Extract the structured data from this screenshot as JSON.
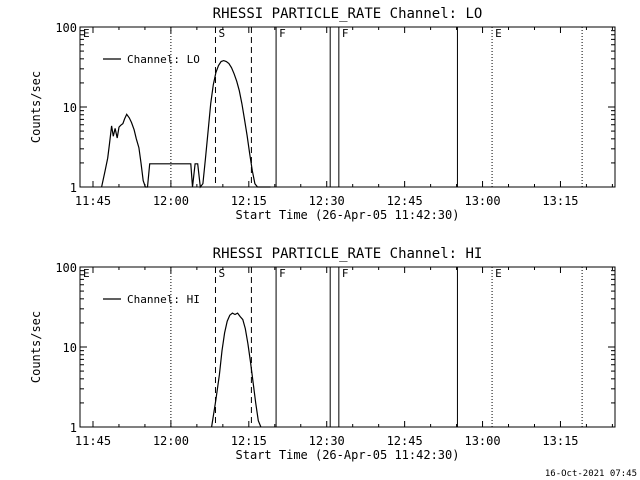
{
  "footer": {
    "date_stamp": "16-Oct-2021 07:45"
  },
  "chart_data": [
    {
      "type": "line",
      "title": "RHESSI PARTICLE_RATE Channel: LO",
      "xlabel": "Start Time (26-Apr-05 11:42:30)",
      "ylabel": "Counts/sec",
      "yscale": "log",
      "xlim": [
        "11:42:30",
        "13:25:30"
      ],
      "ylim": [
        1,
        100
      ],
      "x_ticks": [
        "11:45",
        "12:00",
        "12:15",
        "12:30",
        "12:45",
        "13:00",
        "13:15"
      ],
      "y_ticks": [
        "1",
        "10",
        "100"
      ],
      "legend": {
        "position": "top-left"
      },
      "series": [
        {
          "name": "Channel: LO",
          "x": [
            "11:46:40",
            "11:47:20",
            "11:47:50",
            "11:48:10",
            "11:48:35",
            "11:48:55",
            "11:49:15",
            "11:49:40",
            "11:50:00",
            "11:50:20",
            "11:50:45",
            "11:51:05",
            "11:51:30",
            "11:52:00",
            "11:52:25",
            "11:52:55",
            "11:53:20",
            "11:53:50",
            "11:54:15",
            "11:54:40",
            "11:55:05",
            "11:55:30",
            "11:55:55",
            "11:56:20",
            "11:56:45",
            "11:57:10",
            "11:57:35",
            "11:58:00",
            "11:58:25",
            "11:58:50",
            "12:03:50",
            "12:04:10",
            "12:04:40",
            "12:05:10",
            "12:05:40",
            "12:06:10",
            "12:06:40",
            "12:07:10",
            "12:07:40",
            "12:08:10",
            "12:08:40",
            "12:09:10",
            "12:09:40",
            "12:10:10",
            "12:10:40",
            "12:11:10",
            "12:11:40",
            "12:12:10",
            "12:12:40",
            "12:13:10",
            "12:13:40",
            "12:14:10",
            "12:14:40",
            "12:15:10",
            "12:15:40",
            "12:16:10",
            "12:16:40",
            "12:17:10",
            "12:17:40",
            "12:18:10",
            "12:18:40",
            "12:19:10"
          ],
          "y": [
            1.0,
            1.6,
            2.3,
            3.4,
            5.8,
            4.3,
            5.4,
            4.1,
            5.6,
            5.9,
            6.2,
            7.1,
            8.1,
            7.3,
            6.4,
            5.2,
            4.0,
            3.1,
            2.0,
            1.2,
            1.0,
            1.0,
            1.95,
            1.95,
            1.95,
            1.95,
            1.95,
            1.95,
            1.95,
            1.95,
            1.95,
            1.0,
            1.95,
            1.95,
            1.0,
            1.1,
            2.3,
            5.0,
            11,
            19,
            27,
            33,
            37,
            38,
            37,
            35,
            31,
            26,
            21,
            16,
            11,
            7,
            4.4,
            2.6,
            1.6,
            1.1,
            1.0,
            1.0,
            1.0,
            1.0,
            1.0,
            1.0
          ]
        }
      ],
      "markers": [
        {
          "label": "E",
          "time": "11:42:30",
          "style": "dotted"
        },
        {
          "label": "",
          "time": "12:00:00",
          "style": "dotted"
        },
        {
          "label": "S",
          "time": "12:08:35",
          "style": "dashed"
        },
        {
          "label": "",
          "time": "12:15:30",
          "style": "dashed"
        },
        {
          "label": "F",
          "time": "12:20:15",
          "style": "solid"
        },
        {
          "label": "",
          "time": "12:30:40",
          "style": "solid"
        },
        {
          "label": "F",
          "time": "12:32:20",
          "style": "solid"
        },
        {
          "label": "",
          "time": "12:55:10",
          "style": "solid"
        },
        {
          "label": "E",
          "time": "13:01:50",
          "style": "dotted"
        },
        {
          "label": "",
          "time": "13:19:10",
          "style": "dotted"
        }
      ]
    },
    {
      "type": "line",
      "title": "RHESSI PARTICLE_RATE Channel: HI",
      "xlabel": "Start Time (26-Apr-05 11:42:30)",
      "ylabel": "Counts/sec",
      "yscale": "log",
      "xlim": [
        "11:42:30",
        "13:25:30"
      ],
      "ylim": [
        1,
        100
      ],
      "x_ticks": [
        "11:45",
        "12:00",
        "12:15",
        "12:30",
        "12:45",
        "13:00",
        "13:15"
      ],
      "y_ticks": [
        "1",
        "10",
        "100"
      ],
      "legend": {
        "position": "top-left"
      },
      "series": [
        {
          "name": "Channel: HI",
          "x": [
            "12:07:50",
            "12:08:40",
            "12:09:20",
            "12:09:50",
            "12:10:20",
            "12:10:50",
            "12:11:20",
            "12:11:50",
            "12:12:20",
            "12:12:50",
            "12:13:20",
            "12:13:50",
            "12:14:20",
            "12:14:50",
            "12:15:20",
            "12:15:50",
            "12:16:20",
            "12:16:50",
            "12:17:20"
          ],
          "y": [
            1.0,
            2.2,
            4.5,
            9,
            15,
            21,
            25,
            26.5,
            25.5,
            26.5,
            24,
            22,
            17,
            11,
            6.5,
            3.6,
            2.0,
            1.2,
            1.0
          ]
        }
      ],
      "markers": [
        {
          "label": "E",
          "time": "11:42:30",
          "style": "dotted"
        },
        {
          "label": "",
          "time": "12:00:00",
          "style": "dotted"
        },
        {
          "label": "S",
          "time": "12:08:35",
          "style": "dashed"
        },
        {
          "label": "",
          "time": "12:15:30",
          "style": "dashed"
        },
        {
          "label": "F",
          "time": "12:20:15",
          "style": "solid"
        },
        {
          "label": "",
          "time": "12:30:40",
          "style": "solid"
        },
        {
          "label": "F",
          "time": "12:32:20",
          "style": "solid"
        },
        {
          "label": "",
          "time": "12:55:10",
          "style": "solid"
        },
        {
          "label": "E",
          "time": "13:01:50",
          "style": "dotted"
        },
        {
          "label": "",
          "time": "13:19:10",
          "style": "dotted"
        }
      ]
    }
  ]
}
